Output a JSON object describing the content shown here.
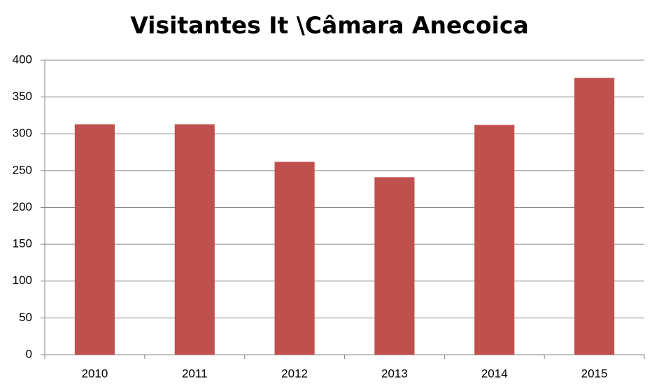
{
  "chart_data": {
    "type": "bar",
    "title": "Visitantes It \\Câmara Anecoica",
    "categories": [
      "2010",
      "2011",
      "2012",
      "2013",
      "2014",
      "2015"
    ],
    "values": [
      313,
      313,
      262,
      241,
      312,
      376
    ],
    "color": "#c0504d",
    "ylim": [
      0,
      400
    ],
    "yticks": [
      0,
      50,
      100,
      150,
      200,
      250,
      300,
      350,
      400
    ],
    "grid": true
  }
}
